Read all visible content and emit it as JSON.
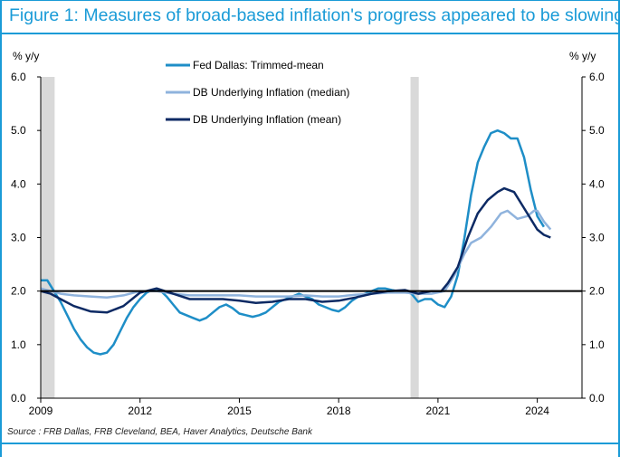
{
  "title": "Figure 1: Measures of broad-based inflation's progress appeared to be slowing",
  "source": "Source : FRB Dallas, FRB Cleveland, BEA, Haver Analytics, Deutsche Bank",
  "colors": {
    "accent": "#1a9bd7",
    "trimmed_mean": "#1e8ec7",
    "median": "#8fb3dd",
    "mean": "#0d2a64",
    "reference_line": "#000000",
    "recession": "#d9d9d9"
  },
  "chart_data": {
    "type": "line",
    "left_axis_unit": "% y/y",
    "right_axis_unit": "% y/y",
    "ylim": [
      0,
      6
    ],
    "y_ticks": [
      "0.0",
      "1.0",
      "2.0",
      "3.0",
      "4.0",
      "5.0",
      "6.0"
    ],
    "xlim": [
      2009.0,
      2025.35
    ],
    "x_ticks": [
      "2009",
      "2012",
      "2015",
      "2018",
      "2021",
      "2024"
    ],
    "grid": false,
    "legend_position": "top-center",
    "reference_line": 2.0,
    "shaded_periods": [
      [
        2009.0,
        2009.42
      ],
      [
        2020.17,
        2020.42
      ]
    ],
    "series": [
      {
        "name": "Fed Dallas: Trimmed-mean",
        "color": "#1e8ec7",
        "points": [
          [
            2009.0,
            2.2
          ],
          [
            2009.2,
            2.2
          ],
          [
            2009.4,
            2.0
          ],
          [
            2009.6,
            1.8
          ],
          [
            2009.8,
            1.55
          ],
          [
            2010.0,
            1.3
          ],
          [
            2010.2,
            1.1
          ],
          [
            2010.4,
            0.95
          ],
          [
            2010.6,
            0.85
          ],
          [
            2010.8,
            0.82
          ],
          [
            2011.0,
            0.85
          ],
          [
            2011.2,
            1.0
          ],
          [
            2011.4,
            1.25
          ],
          [
            2011.6,
            1.5
          ],
          [
            2011.8,
            1.7
          ],
          [
            2012.0,
            1.85
          ],
          [
            2012.2,
            1.97
          ],
          [
            2012.4,
            2.03
          ],
          [
            2012.6,
            2.02
          ],
          [
            2012.8,
            1.9
          ],
          [
            2013.0,
            1.75
          ],
          [
            2013.2,
            1.6
          ],
          [
            2013.4,
            1.55
          ],
          [
            2013.6,
            1.5
          ],
          [
            2013.8,
            1.45
          ],
          [
            2014.0,
            1.5
          ],
          [
            2014.2,
            1.6
          ],
          [
            2014.4,
            1.7
          ],
          [
            2014.6,
            1.75
          ],
          [
            2014.8,
            1.68
          ],
          [
            2015.0,
            1.58
          ],
          [
            2015.2,
            1.55
          ],
          [
            2015.4,
            1.52
          ],
          [
            2015.6,
            1.55
          ],
          [
            2015.8,
            1.6
          ],
          [
            2016.0,
            1.7
          ],
          [
            2016.2,
            1.8
          ],
          [
            2016.4,
            1.85
          ],
          [
            2016.6,
            1.9
          ],
          [
            2016.8,
            1.95
          ],
          [
            2017.0,
            1.9
          ],
          [
            2017.2,
            1.85
          ],
          [
            2017.4,
            1.75
          ],
          [
            2017.6,
            1.7
          ],
          [
            2017.8,
            1.65
          ],
          [
            2018.0,
            1.62
          ],
          [
            2018.2,
            1.7
          ],
          [
            2018.4,
            1.82
          ],
          [
            2018.6,
            1.9
          ],
          [
            2018.8,
            1.95
          ],
          [
            2019.0,
            2.0
          ],
          [
            2019.2,
            2.05
          ],
          [
            2019.4,
            2.05
          ],
          [
            2019.6,
            2.02
          ],
          [
            2019.8,
            2.0
          ],
          [
            2020.0,
            2.0
          ],
          [
            2020.2,
            1.95
          ],
          [
            2020.4,
            1.8
          ],
          [
            2020.6,
            1.85
          ],
          [
            2020.8,
            1.85
          ],
          [
            2021.0,
            1.75
          ],
          [
            2021.2,
            1.7
          ],
          [
            2021.4,
            1.9
          ],
          [
            2021.6,
            2.3
          ],
          [
            2021.8,
            3.0
          ],
          [
            2022.0,
            3.8
          ],
          [
            2022.2,
            4.4
          ],
          [
            2022.4,
            4.7
          ],
          [
            2022.6,
            4.95
          ],
          [
            2022.8,
            5.0
          ],
          [
            2023.0,
            4.95
          ],
          [
            2023.2,
            4.85
          ],
          [
            2023.4,
            4.85
          ],
          [
            2023.6,
            4.5
          ],
          [
            2023.8,
            3.9
          ],
          [
            2024.0,
            3.4
          ],
          [
            2024.2,
            3.2
          ]
        ]
      },
      {
        "name": "DB Underlying Inflation (median)",
        "color": "#8fb3dd",
        "points": [
          [
            2009.0,
            2.05
          ],
          [
            2009.3,
            2.0
          ],
          [
            2009.6,
            1.95
          ],
          [
            2010.0,
            1.92
          ],
          [
            2010.5,
            1.9
          ],
          [
            2011.0,
            1.88
          ],
          [
            2011.5,
            1.92
          ],
          [
            2012.0,
            2.0
          ],
          [
            2012.5,
            2.0
          ],
          [
            2013.0,
            1.95
          ],
          [
            2013.5,
            1.92
          ],
          [
            2014.0,
            1.92
          ],
          [
            2014.5,
            1.92
          ],
          [
            2015.0,
            1.92
          ],
          [
            2015.5,
            1.9
          ],
          [
            2016.0,
            1.9
          ],
          [
            2016.5,
            1.9
          ],
          [
            2017.0,
            1.92
          ],
          [
            2017.5,
            1.9
          ],
          [
            2018.0,
            1.9
          ],
          [
            2018.5,
            1.93
          ],
          [
            2019.0,
            1.95
          ],
          [
            2019.5,
            1.97
          ],
          [
            2020.0,
            1.97
          ],
          [
            2020.4,
            1.95
          ],
          [
            2020.8,
            1.95
          ],
          [
            2021.2,
            2.0
          ],
          [
            2021.5,
            2.3
          ],
          [
            2021.8,
            2.7
          ],
          [
            2022.0,
            2.9
          ],
          [
            2022.3,
            3.0
          ],
          [
            2022.6,
            3.2
          ],
          [
            2022.9,
            3.45
          ],
          [
            2023.1,
            3.5
          ],
          [
            2023.4,
            3.35
          ],
          [
            2023.7,
            3.4
          ],
          [
            2023.9,
            3.5
          ],
          [
            2024.0,
            3.5
          ],
          [
            2024.2,
            3.3
          ],
          [
            2024.4,
            3.15
          ]
        ]
      },
      {
        "name": "DB Underlying Inflation (mean)",
        "color": "#0d2a64",
        "points": [
          [
            2009.0,
            2.0
          ],
          [
            2009.3,
            1.95
          ],
          [
            2009.6,
            1.85
          ],
          [
            2010.0,
            1.72
          ],
          [
            2010.5,
            1.62
          ],
          [
            2011.0,
            1.6
          ],
          [
            2011.5,
            1.72
          ],
          [
            2012.0,
            1.97
          ],
          [
            2012.5,
            2.05
          ],
          [
            2013.0,
            1.95
          ],
          [
            2013.5,
            1.85
          ],
          [
            2014.0,
            1.85
          ],
          [
            2014.5,
            1.85
          ],
          [
            2015.0,
            1.82
          ],
          [
            2015.5,
            1.78
          ],
          [
            2016.0,
            1.8
          ],
          [
            2016.5,
            1.85
          ],
          [
            2017.0,
            1.85
          ],
          [
            2017.5,
            1.8
          ],
          [
            2018.0,
            1.82
          ],
          [
            2018.5,
            1.88
          ],
          [
            2019.0,
            1.95
          ],
          [
            2019.5,
            2.0
          ],
          [
            2020.0,
            2.02
          ],
          [
            2020.4,
            1.95
          ],
          [
            2020.8,
            2.0
          ],
          [
            2021.1,
            2.0
          ],
          [
            2021.3,
            2.15
          ],
          [
            2021.6,
            2.45
          ],
          [
            2021.9,
            3.0
          ],
          [
            2022.2,
            3.45
          ],
          [
            2022.5,
            3.7
          ],
          [
            2022.8,
            3.85
          ],
          [
            2023.0,
            3.92
          ],
          [
            2023.3,
            3.85
          ],
          [
            2023.6,
            3.55
          ],
          [
            2023.8,
            3.35
          ],
          [
            2024.0,
            3.15
          ],
          [
            2024.2,
            3.05
          ],
          [
            2024.4,
            3.0
          ]
        ]
      }
    ]
  }
}
